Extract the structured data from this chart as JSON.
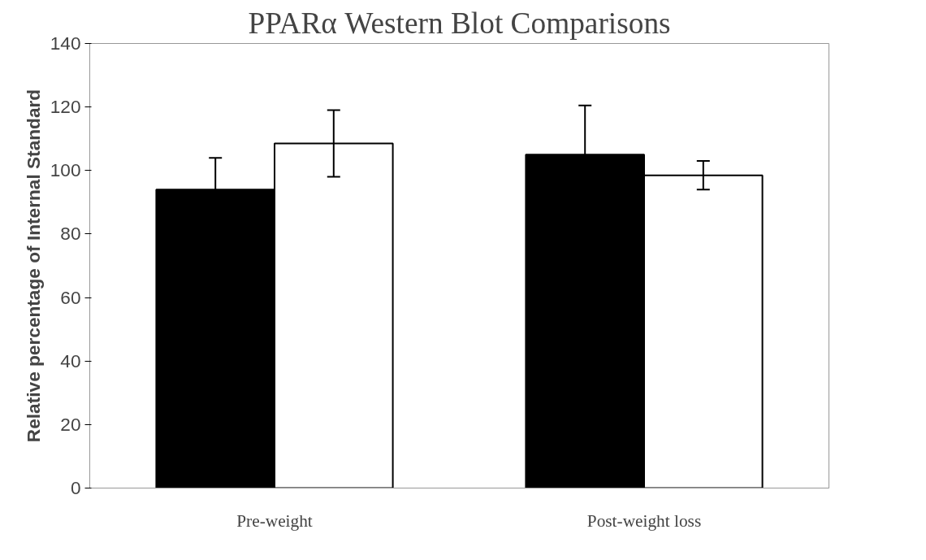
{
  "chart_data": {
    "type": "bar",
    "title": "PPARα Western Blot Comparisons",
    "ylabel": "Relative percentage of Internal Standard",
    "categories": [
      "Pre-weight",
      "Post-weight loss"
    ],
    "series": [
      {
        "color": "#000000",
        "values": [
          94,
          105
        ],
        "errors": [
          10,
          15.5
        ]
      },
      {
        "color": "#ffffff",
        "values": [
          108.5,
          98.5
        ],
        "errors": [
          10.5,
          4.5
        ]
      }
    ],
    "ylim": [
      0,
      140
    ],
    "yticks": [
      0,
      20,
      40,
      60,
      80,
      100,
      120,
      140
    ],
    "grid": false
  }
}
